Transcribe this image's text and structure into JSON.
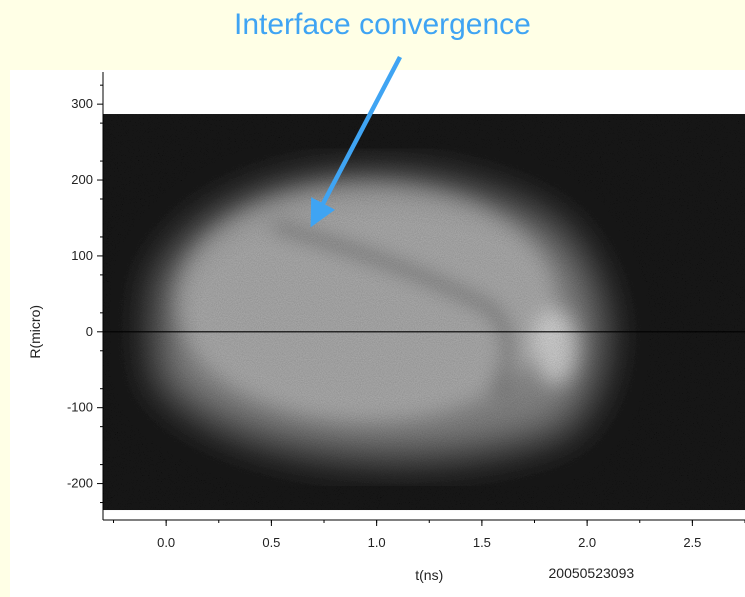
{
  "annotation": {
    "text": "Interface convergence",
    "color": "#3fa4f3"
  },
  "chart_data": {
    "type": "heatmap",
    "title": "",
    "xlabel": "t(ns)",
    "ylabel": "R(micro)",
    "shot_id": "20050523093",
    "xlim": [
      -0.3,
      2.75
    ],
    "ylim": [
      -248,
      345
    ],
    "x_ticks": [
      0.0,
      0.5,
      1.0,
      1.5,
      2.0,
      2.5
    ],
    "x_tick_labels": [
      "0.0",
      "0.5",
      "1.0",
      "1.5",
      "2.0",
      "2.5"
    ],
    "y_ticks": [
      300,
      200,
      100,
      0,
      -100,
      -200
    ],
    "y_tick_labels": [
      "300",
      "200",
      "100",
      "0",
      "-100",
      "-200"
    ],
    "image_extent": {
      "x": [
        -0.3,
        2.75
      ],
      "y": [
        -235,
        287
      ]
    },
    "reference_line_y": 0,
    "grid": false,
    "background_color": "#151515",
    "emission_color": "#e8e8e8",
    "annotation_target": {
      "x": 0.7,
      "y": 145
    }
  }
}
